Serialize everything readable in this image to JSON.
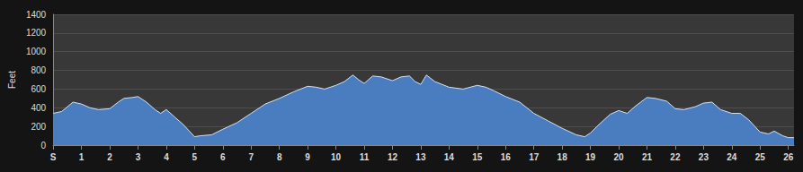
{
  "chart_data": {
    "type": "area",
    "y_label": "Feet",
    "color": "#4a7cc0",
    "grid": true,
    "xlim": [
      0,
      26.2
    ],
    "ylim": [
      0,
      1400
    ],
    "xticks": [
      {
        "value": 0,
        "label": "S"
      },
      1,
      2,
      3,
      4,
      5,
      6,
      7,
      8,
      9,
      10,
      11,
      12,
      13,
      14,
      15,
      16,
      17,
      18,
      19,
      20,
      21,
      22,
      23,
      24,
      25,
      26
    ],
    "yticks": [
      0,
      200,
      400,
      600,
      800,
      1000,
      1200,
      1400
    ],
    "x": [
      0,
      0.3,
      0.7,
      1.0,
      1.3,
      1.6,
      2.0,
      2.3,
      2.5,
      2.8,
      3.0,
      3.3,
      3.6,
      3.8,
      4.0,
      4.3,
      4.6,
      5.0,
      5.2,
      5.6,
      6.0,
      6.5,
      7.0,
      7.5,
      8.0,
      8.5,
      9.0,
      9.3,
      9.6,
      10.0,
      10.3,
      10.6,
      10.8,
      11.0,
      11.3,
      11.6,
      12.0,
      12.3,
      12.6,
      12.8,
      13.0,
      13.2,
      13.5,
      14.0,
      14.5,
      15.0,
      15.3,
      15.6,
      16.0,
      16.5,
      17.0,
      17.5,
      18.0,
      18.5,
      18.8,
      19.0,
      19.3,
      19.7,
      20.0,
      20.3,
      20.6,
      21.0,
      21.3,
      21.7,
      22.0,
      22.3,
      22.7,
      23.0,
      23.3,
      23.6,
      24.0,
      24.3,
      24.6,
      25.0,
      25.3,
      25.5,
      25.8,
      26.0,
      26.2
    ],
    "values": [
      340,
      360,
      460,
      440,
      400,
      380,
      390,
      460,
      500,
      510,
      520,
      460,
      380,
      340,
      380,
      300,
      220,
      90,
      100,
      110,
      170,
      240,
      340,
      440,
      500,
      570,
      630,
      620,
      600,
      640,
      680,
      750,
      700,
      660,
      740,
      730,
      690,
      730,
      740,
      680,
      650,
      750,
      680,
      620,
      600,
      640,
      620,
      580,
      520,
      460,
      340,
      260,
      180,
      110,
      90,
      130,
      220,
      330,
      370,
      340,
      420,
      510,
      500,
      470,
      390,
      380,
      410,
      450,
      460,
      380,
      340,
      340,
      270,
      140,
      120,
      150,
      100,
      80,
      80
    ]
  }
}
